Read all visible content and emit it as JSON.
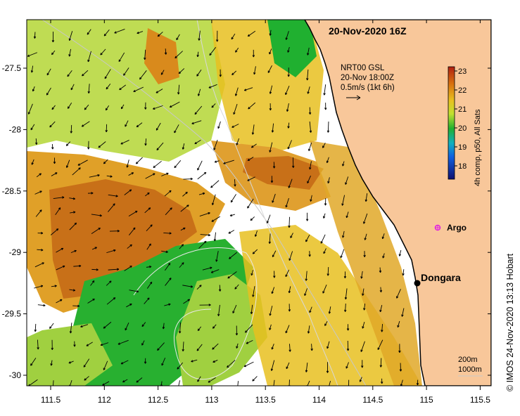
{
  "title": "20-Nov-2020 16Z",
  "current_info": {
    "line1": "NRT00 GSL",
    "line2": "20-Nov 18:00Z",
    "line3": "0.5m/s (1kt 6h)"
  },
  "colorbar": {
    "label": "4h comp, p50, All Sats",
    "ticks": [
      "23",
      "22",
      "21",
      "20",
      "19",
      "18"
    ]
  },
  "places": {
    "argo": "Argo",
    "dongara": "Dongara"
  },
  "scale": {
    "contour_1": "200m",
    "contour_2": "1000m"
  },
  "credit": "© IMOS 24-Nov-2020 13:13 Hobart",
  "x_axis": {
    "ticks": [
      "111.5",
      "112",
      "112.5",
      "113",
      "113.5",
      "114",
      "114.5",
      "115",
      "115.5"
    ]
  },
  "y_axis": {
    "ticks": [
      "-27.5",
      "-28",
      "-28.5",
      "-29",
      "-29.5",
      "-30"
    ]
  },
  "colors": {
    "land": "#f8c79a",
    "warm": "#d98a1c",
    "hot": "#c86a10",
    "mid": "#e8c020",
    "cool": "#22b030",
    "light": "#a0d040",
    "argo": "#e020e0"
  }
}
